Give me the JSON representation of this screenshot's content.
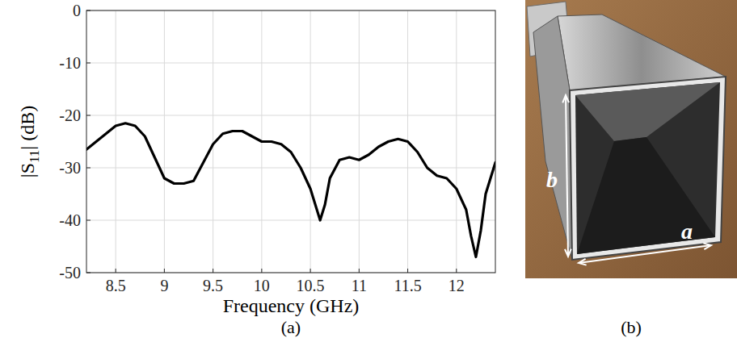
{
  "chart_data": {
    "type": "line",
    "caption": "(a)",
    "xlabel": "Frequency (GHz)",
    "ylabel": "|S11| (dB)",
    "x": [
      8.2,
      8.3,
      8.4,
      8.5,
      8.6,
      8.7,
      8.8,
      8.9,
      9.0,
      9.1,
      9.2,
      9.3,
      9.4,
      9.5,
      9.6,
      9.7,
      9.8,
      9.9,
      10.0,
      10.1,
      10.2,
      10.3,
      10.4,
      10.5,
      10.55,
      10.6,
      10.65,
      10.7,
      10.8,
      10.9,
      11.0,
      11.1,
      11.2,
      11.3,
      11.4,
      11.5,
      11.6,
      11.7,
      11.8,
      11.9,
      12.0,
      12.1,
      12.15,
      12.2,
      12.25,
      12.3,
      12.4
    ],
    "values": [
      -26.5,
      -25,
      -23.5,
      -22,
      -21.5,
      -22,
      -24,
      -28,
      -32,
      -33,
      -33,
      -32.5,
      -29,
      -25.5,
      -23.5,
      -23,
      -23,
      -24,
      -25,
      -25,
      -25.5,
      -27,
      -30,
      -34,
      -37,
      -40,
      -37,
      -32,
      -28.5,
      -28,
      -28.5,
      -27.5,
      -26,
      -25,
      -24.5,
      -25,
      -27,
      -30,
      -31.5,
      -32,
      -34,
      -38,
      -43,
      -47,
      -42,
      -35,
      -29
    ],
    "color": "#000000",
    "xlim": [
      8.2,
      12.4
    ],
    "xticks": [
      8.5,
      9,
      9.5,
      10,
      10.5,
      11,
      11.5,
      12
    ],
    "ylim": [
      -50,
      0
    ],
    "yticks": [
      -50,
      -40,
      -30,
      -20,
      -10,
      0
    ],
    "grid": true
  },
  "photo": {
    "caption": "(b)",
    "height_label": "b",
    "width_label": "a"
  }
}
